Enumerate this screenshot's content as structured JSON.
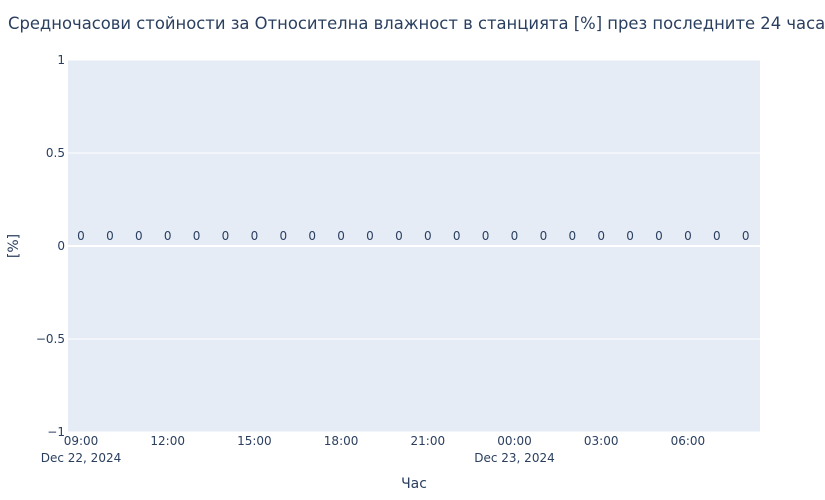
{
  "chart_data": {
    "type": "bar",
    "title": "Средночасови стойности за Относителна влажност в станцията [%] през последните 24 часа",
    "xlabel": "Час",
    "ylabel": "[%]",
    "ylim": [
      -1,
      1
    ],
    "yticks": [
      {
        "value": 1,
        "label": "1"
      },
      {
        "value": 0.5,
        "label": "0.5"
      },
      {
        "value": 0,
        "label": "0"
      },
      {
        "value": -0.5,
        "label": "−0.5"
      },
      {
        "value": -1,
        "label": "−1"
      }
    ],
    "xticks": [
      {
        "hour": 0,
        "label": "09:00",
        "sublabel": "Dec 22, 2024"
      },
      {
        "hour": 3,
        "label": "12:00",
        "sublabel": ""
      },
      {
        "hour": 6,
        "label": "15:00",
        "sublabel": ""
      },
      {
        "hour": 9,
        "label": "18:00",
        "sublabel": ""
      },
      {
        "hour": 12,
        "label": "21:00",
        "sublabel": ""
      },
      {
        "hour": 15,
        "label": "00:00",
        "sublabel": "Dec 23, 2024"
      },
      {
        "hour": 18,
        "label": "03:00",
        "sublabel": ""
      },
      {
        "hour": 21,
        "label": "06:00",
        "sublabel": ""
      }
    ],
    "x": [
      "09:00",
      "10:00",
      "11:00",
      "12:00",
      "13:00",
      "14:00",
      "15:00",
      "16:00",
      "17:00",
      "18:00",
      "19:00",
      "20:00",
      "21:00",
      "22:00",
      "23:00",
      "00:00",
      "01:00",
      "02:00",
      "03:00",
      "04:00",
      "05:00",
      "06:00",
      "07:00",
      "08:00"
    ],
    "values": [
      0,
      0,
      0,
      0,
      0,
      0,
      0,
      0,
      0,
      0,
      0,
      0,
      0,
      0,
      0,
      0,
      0,
      0,
      0,
      0,
      0,
      0,
      0,
      0
    ],
    "grid": true,
    "colors": {
      "plot_bg": "#e5ecf6",
      "grid": "#ffffff",
      "text": "#2a3f5f"
    }
  }
}
